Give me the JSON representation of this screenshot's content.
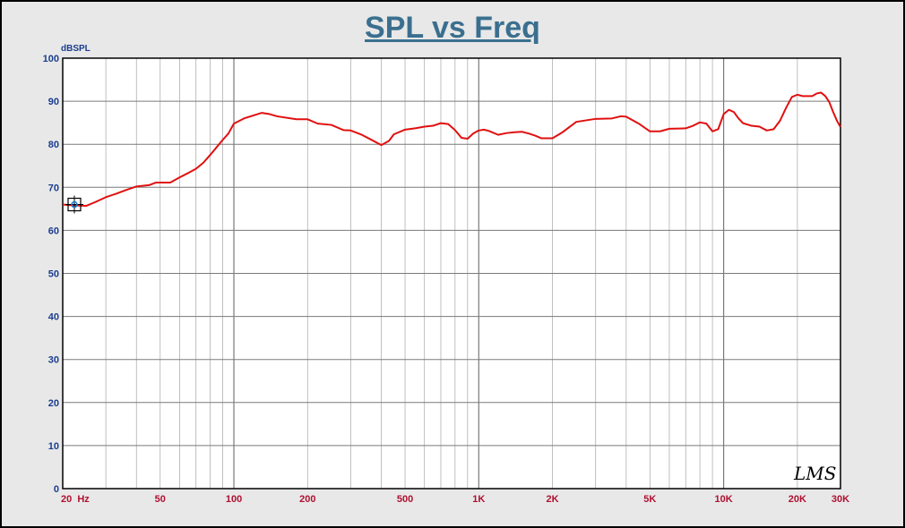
{
  "chart_data": {
    "type": "line",
    "title": "SPL vs Freq",
    "ylabel": "dBSPL",
    "xlabel": "",
    "x_scale": "log",
    "xlim": [
      20,
      30000
    ],
    "ylim": [
      0,
      100
    ],
    "grid": true,
    "y_ticks": [
      "0",
      "10",
      "20",
      "30",
      "40",
      "50",
      "60",
      "70",
      "80",
      "90",
      "100"
    ],
    "x_tick_labels": [
      {
        "value": 20,
        "label": "20  Hz"
      },
      {
        "value": 50,
        "label": "50"
      },
      {
        "value": 100,
        "label": "100"
      },
      {
        "value": 200,
        "label": "200"
      },
      {
        "value": 500,
        "label": "500"
      },
      {
        "value": 1000,
        "label": "1K"
      },
      {
        "value": 2000,
        "label": "2K"
      },
      {
        "value": 5000,
        "label": "5K"
      },
      {
        "value": 10000,
        "label": "10K"
      },
      {
        "value": 20000,
        "label": "20K"
      },
      {
        "value": 30000,
        "label": "30K"
      }
    ],
    "watermark": "LMS",
    "series": [
      {
        "color": "#e01010",
        "points": [
          [
            20,
            66
          ],
          [
            22,
            65.8
          ],
          [
            25,
            65.7
          ],
          [
            27,
            66.5
          ],
          [
            30,
            67.7
          ],
          [
            33,
            68.5
          ],
          [
            36,
            69.3
          ],
          [
            40,
            70.2
          ],
          [
            45,
            70.5
          ],
          [
            48,
            71.1
          ],
          [
            55,
            71.1
          ],
          [
            60,
            72.3
          ],
          [
            65,
            73.3
          ],
          [
            70,
            74.3
          ],
          [
            75,
            75.7
          ],
          [
            80,
            77.5
          ],
          [
            85,
            79.3
          ],
          [
            90,
            81
          ],
          [
            95,
            82.5
          ],
          [
            100,
            84.8
          ],
          [
            110,
            86
          ],
          [
            125,
            87
          ],
          [
            130,
            87.3
          ],
          [
            140,
            87
          ],
          [
            150,
            86.5
          ],
          [
            180,
            85.8
          ],
          [
            200,
            85.8
          ],
          [
            220,
            84.8
          ],
          [
            250,
            84.5
          ],
          [
            280,
            83.3
          ],
          [
            300,
            83.2
          ],
          [
            330,
            82.3
          ],
          [
            360,
            81.2
          ],
          [
            400,
            79.8
          ],
          [
            430,
            80.8
          ],
          [
            450,
            82.3
          ],
          [
            500,
            83.4
          ],
          [
            550,
            83.7
          ],
          [
            600,
            84.1
          ],
          [
            650,
            84.3
          ],
          [
            700,
            84.9
          ],
          [
            750,
            84.7
          ],
          [
            800,
            83.3
          ],
          [
            850,
            81.5
          ],
          [
            900,
            81.3
          ],
          [
            950,
            82.5
          ],
          [
            1000,
            83.2
          ],
          [
            1050,
            83.4
          ],
          [
            1100,
            83.1
          ],
          [
            1200,
            82.2
          ],
          [
            1300,
            82.6
          ],
          [
            1400,
            82.8
          ],
          [
            1500,
            82.9
          ],
          [
            1600,
            82.5
          ],
          [
            1700,
            82
          ],
          [
            1800,
            81.4
          ],
          [
            2000,
            81.4
          ],
          [
            2200,
            82.8
          ],
          [
            2500,
            85.2
          ],
          [
            3000,
            85.9
          ],
          [
            3500,
            86
          ],
          [
            3800,
            86.5
          ],
          [
            4000,
            86.4
          ],
          [
            4500,
            84.8
          ],
          [
            5000,
            83
          ],
          [
            5500,
            83
          ],
          [
            6000,
            83.6
          ],
          [
            7000,
            83.7
          ],
          [
            7500,
            84.3
          ],
          [
            8000,
            85.1
          ],
          [
            8500,
            84.8
          ],
          [
            9000,
            83
          ],
          [
            9500,
            83.5
          ],
          [
            10000,
            87
          ],
          [
            10500,
            88
          ],
          [
            11000,
            87.5
          ],
          [
            11500,
            86
          ],
          [
            12000,
            84.9
          ],
          [
            13000,
            84.3
          ],
          [
            14000,
            84.1
          ],
          [
            15000,
            83.2
          ],
          [
            16000,
            83.5
          ],
          [
            17000,
            85.5
          ],
          [
            18000,
            88.5
          ],
          [
            19000,
            91
          ],
          [
            20000,
            91.5
          ],
          [
            21000,
            91.2
          ],
          [
            23000,
            91.2
          ],
          [
            24000,
            91.8
          ],
          [
            25000,
            92
          ],
          [
            26000,
            91.2
          ],
          [
            27000,
            89.8
          ],
          [
            28000,
            87.5
          ],
          [
            29000,
            85.5
          ],
          [
            30000,
            84
          ]
        ]
      }
    ]
  }
}
